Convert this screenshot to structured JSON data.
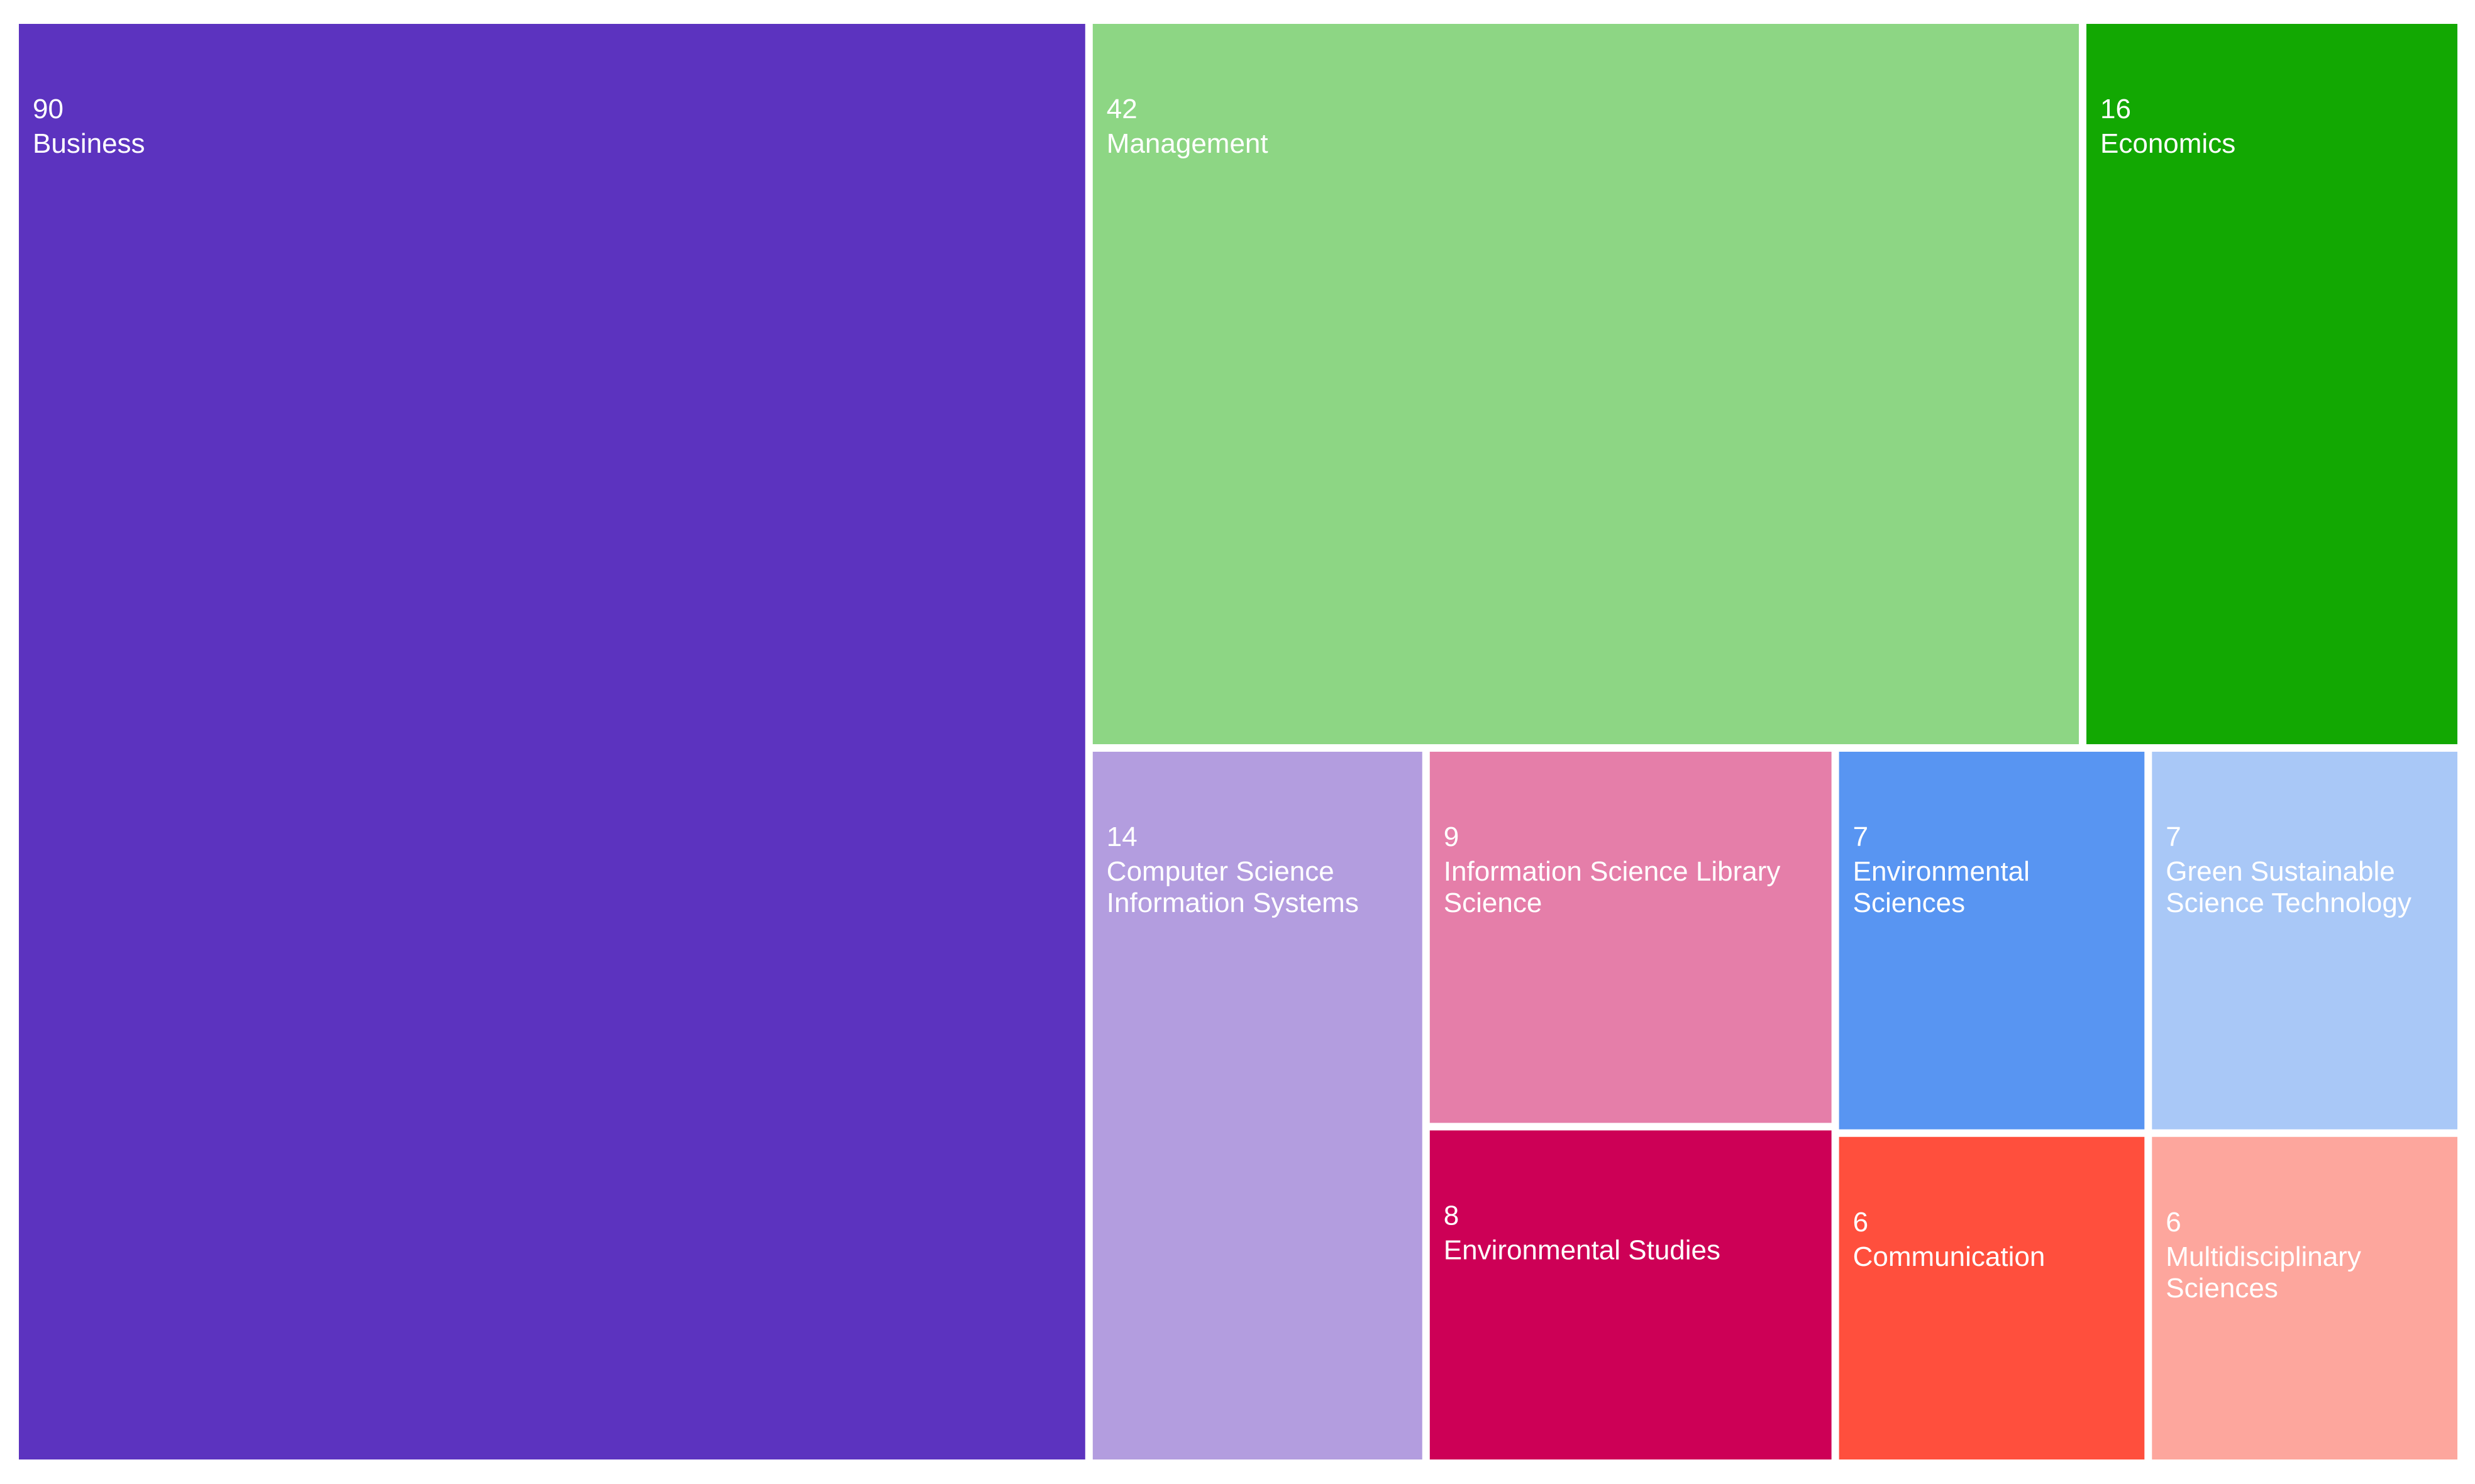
{
  "chart_data": {
    "type": "treemap",
    "title": "",
    "items": [
      {
        "label": "Business",
        "value": 90,
        "color": "#5c33bf"
      },
      {
        "label": "Management",
        "value": 42,
        "color": "#8dd684"
      },
      {
        "label": "Economics",
        "value": 16,
        "color": "#12a802"
      },
      {
        "label": "Computer Science Information Systems",
        "value": 14,
        "color": "#b39ddf"
      },
      {
        "label": "Information Science Library Science",
        "value": 9,
        "color": "#e57ea9"
      },
      {
        "label": "Environmental Studies",
        "value": 8,
        "color": "#cd0056"
      },
      {
        "label": "Environmental Sciences",
        "value": 7,
        "color": "#5895f2"
      },
      {
        "label": "Green Sustainable Science Technology",
        "value": 7,
        "color": "#a9c8f7"
      },
      {
        "label": "Communication",
        "value": 6,
        "color": "#ff4f3d"
      },
      {
        "label": "Multidisciplinary Sciences",
        "value": 6,
        "color": "#fda69d"
      }
    ]
  }
}
